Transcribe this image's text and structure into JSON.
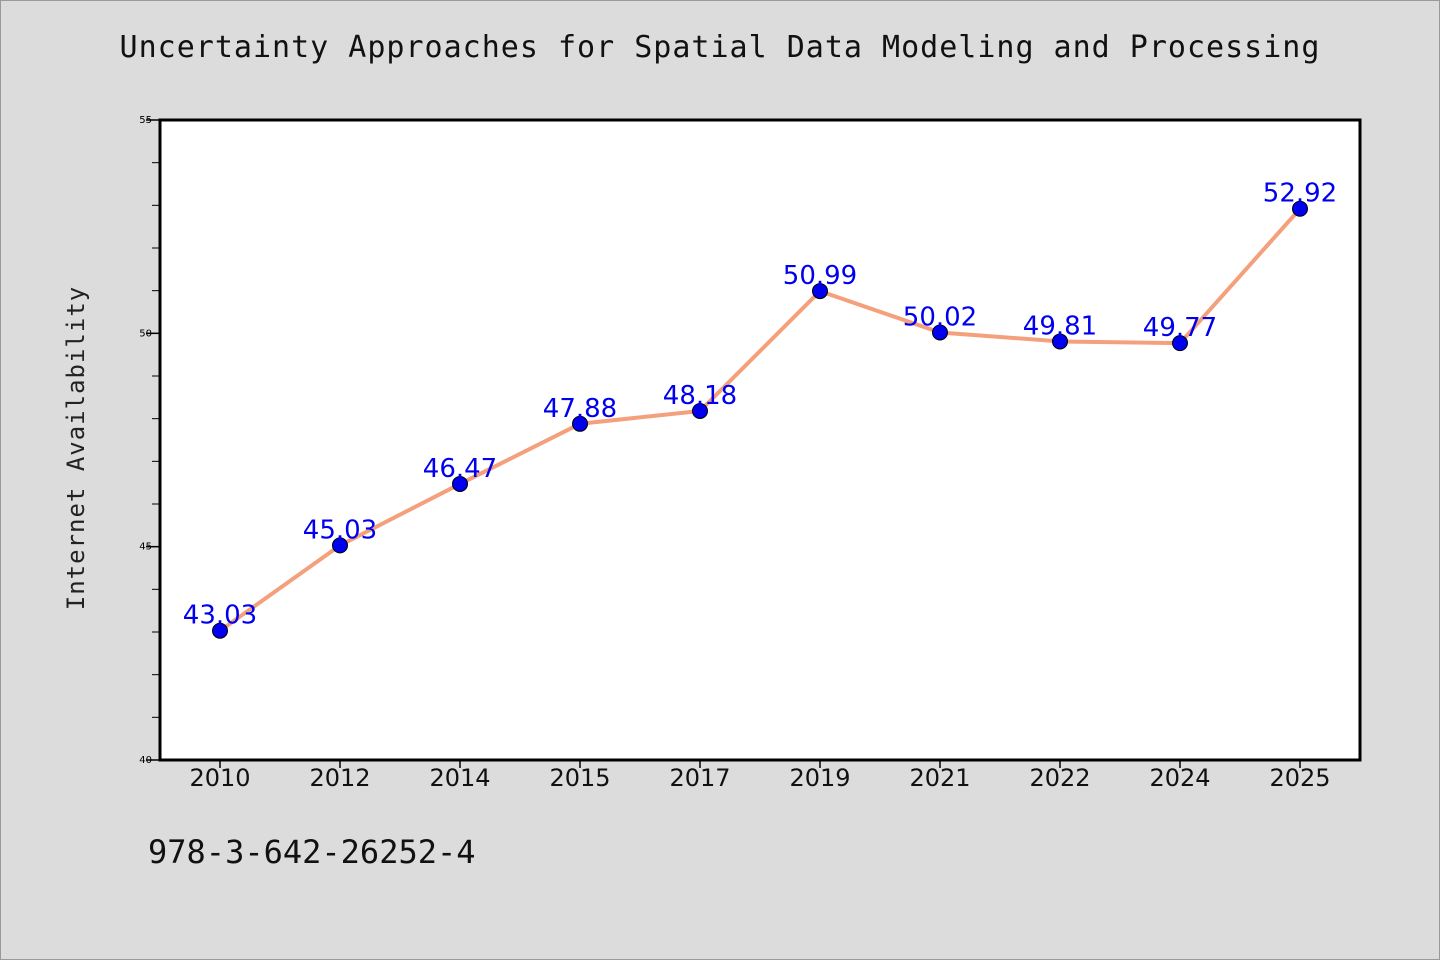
{
  "chart_data": {
    "type": "line",
    "title": "Uncertainty Approaches for Spatial Data Modeling and Processing",
    "xlabel": "",
    "ylabel": "Internet Availability",
    "categories": [
      "2010",
      "2012",
      "2014",
      "2015",
      "2017",
      "2019",
      "2021",
      "2022",
      "2024",
      "2025"
    ],
    "series": [
      {
        "values": [
          43.03,
          45.03,
          46.47,
          47.88,
          48.18,
          50.99,
          50.02,
          49.81,
          49.77,
          52.92
        ],
        "data_labels": [
          "43.03",
          "45.03",
          "46.47",
          "47.88",
          "48.18",
          "50.99",
          "50.02",
          "49.81",
          "49.77",
          "52.92"
        ],
        "line_color": "#f4a07c",
        "marker_color": "#0000ee",
        "label_color": "#0000ee"
      }
    ],
    "ylim": [
      40,
      55
    ],
    "yticks": [
      "40",
      "45",
      "50",
      "55"
    ],
    "grid": false,
    "legend": "none"
  },
  "footnote": "978-3-642-26252-4",
  "colors": {
    "background": "#dcdcdc",
    "plot_background": "#ffffff"
  }
}
